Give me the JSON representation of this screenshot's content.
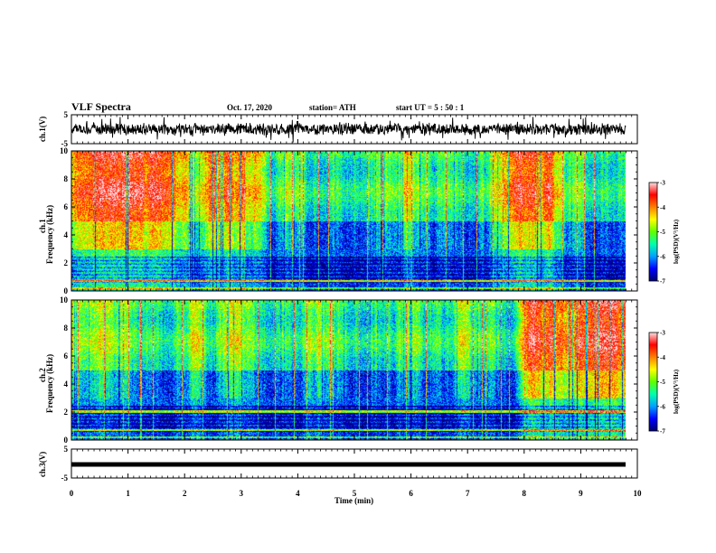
{
  "header": {
    "title": "VLF Spectra",
    "date": "Oct. 17, 2020",
    "station": "station= ATH",
    "start": "start  UT  =   5  : 50 : 1"
  },
  "colors": {
    "spectrogram_scale": [
      "#000070",
      "#0000ff",
      "#00a0ff",
      "#00ffb0",
      "#60ff00",
      "#ffff00",
      "#ff8000",
      "#ff0000",
      "#ffe0e0"
    ],
    "trace": "#000000"
  },
  "chart_data": [
    {
      "name_key": "ch1_waveform",
      "type": "line",
      "ylabel": "ch.1(V)",
      "ylim": [
        -5,
        5
      ],
      "yticks": [
        "5",
        "-5"
      ],
      "xlim": [
        0,
        10
      ]
    },
    {
      "name_key": "ch1_spectrogram",
      "type": "heatmap",
      "ylabel": "ch.1\nFrequency (kHz)",
      "ylim": [
        0,
        10
      ],
      "yticks": [
        "0",
        "2",
        "4",
        "6",
        "8",
        "10"
      ],
      "xlim": [
        0,
        10
      ],
      "colorbar": {
        "label": "log(PSD)(V²/Hz)",
        "range": [
          -7,
          -3
        ],
        "ticks": [
          "-3",
          "-4",
          "-5",
          "-6",
          "-7"
        ]
      }
    },
    {
      "name_key": "ch2_spectrogram",
      "type": "heatmap",
      "ylabel": "ch.2\nFrequency (kHz)",
      "ylim": [
        0,
        10
      ],
      "yticks": [
        "0",
        "2",
        "4",
        "6",
        "8",
        "10"
      ],
      "xlim": [
        0,
        10
      ],
      "colorbar": {
        "label": "log(PSD)(V²/Hz)",
        "range": [
          -7,
          -3
        ],
        "ticks": [
          "-3",
          "-4",
          "-5",
          "-6",
          "-7"
        ]
      }
    },
    {
      "name_key": "ch3_waveform",
      "type": "line",
      "ylabel": "ch.3(V)",
      "ylim": [
        -5,
        5
      ],
      "yticks": [
        "5",
        "-5"
      ],
      "xlim": [
        0,
        10
      ]
    }
  ],
  "xaxis": {
    "label": "Time  (min)",
    "ticks": [
      "0",
      "1",
      "2",
      "3",
      "4",
      "5",
      "6",
      "7",
      "8",
      "9",
      "10"
    ]
  },
  "labels": {
    "ch1_wave": "ch.1(V)",
    "ch1_spec_a": "ch.1",
    "ch1_spec_b": "Frequency  (kHz)",
    "ch2_spec_a": "ch.2",
    "ch2_spec_b": "Frequency  (kHz)",
    "ch3_wave": "ch.3(V)",
    "colorbar_label": "log(PSD)(V²/Hz)"
  }
}
